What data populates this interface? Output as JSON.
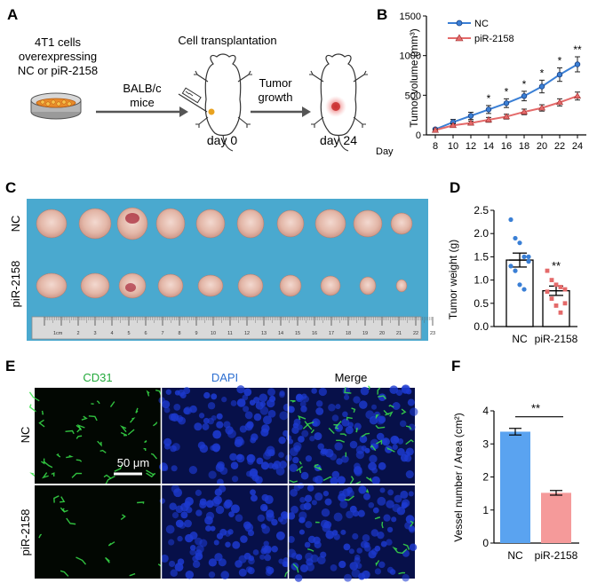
{
  "panels": {
    "a": {
      "letter": "A",
      "cells_line1": "4T1 cells",
      "cells_line2": "overexpressing",
      "cells_line3": "NC or piR-2158",
      "mice_line1": "BALB/c",
      "mice_line2": "mice",
      "transplant": "Cell transplantation",
      "growth_line1": "Tumor",
      "growth_line2": "growth",
      "day0": "day 0",
      "day24": "day 24"
    },
    "c": {
      "letter": "C",
      "row1": "NC",
      "row2": "piR-2158",
      "ruler_unit": "1cm",
      "ruler_ticks": [
        "2",
        "3",
        "4",
        "5",
        "6",
        "7",
        "8",
        "9",
        "10",
        "11",
        "12",
        "13",
        "14",
        "15",
        "16",
        "17",
        "18",
        "19",
        "20",
        "21",
        "22",
        "23"
      ]
    },
    "e": {
      "letter": "E",
      "col1": "CD31",
      "col2": "DAPI",
      "col3": "Merge",
      "row1": "NC",
      "row2": "piR-2158",
      "scale": "50 μm"
    }
  },
  "colors": {
    "nc": "#3a7fd5",
    "pir": "#e46a6a",
    "bar_nc": "#5aa3f0",
    "bar_pir": "#f59a9a",
    "board": "#4aa9cf"
  },
  "chart_data": [
    {
      "id": "B",
      "letter": "B",
      "type": "line",
      "title": "",
      "xlabel": "Day",
      "ylabel": "Tumor volume (mm³)",
      "x": [
        8,
        10,
        12,
        14,
        16,
        18,
        20,
        22,
        24
      ],
      "xlim": [
        7,
        25
      ],
      "ylim": [
        0,
        1500
      ],
      "yticks": [
        "0",
        "500",
        "1000",
        "1500"
      ],
      "ytick_values": [
        0,
        500,
        1000,
        1500
      ],
      "series": [
        {
          "name": "NC",
          "values": [
            70,
            160,
            240,
            320,
            400,
            490,
            610,
            760,
            890
          ],
          "errors": [
            15,
            35,
            45,
            50,
            55,
            60,
            80,
            85,
            95
          ]
        },
        {
          "name": "piR-2158",
          "values": [
            60,
            120,
            150,
            190,
            230,
            290,
            340,
            410,
            490
          ],
          "errors": [
            10,
            20,
            25,
            30,
            30,
            35,
            40,
            45,
            50
          ]
        }
      ],
      "significance": [
        "",
        "",
        "",
        "*",
        "*",
        "*",
        "*",
        "*",
        "**"
      ]
    },
    {
      "id": "D",
      "letter": "D",
      "type": "bar",
      "ylabel": "Tumor weight (g)",
      "categories": [
        "NC",
        "piR-2158"
      ],
      "values": [
        1.43,
        0.77
      ],
      "errors": [
        0.15,
        0.1
      ],
      "ylim": [
        0,
        2.5
      ],
      "yticks": [
        "0.0",
        "0.5",
        "1.0",
        "1.5",
        "2.0",
        "2.5"
      ],
      "ytick_values": [
        0,
        0.5,
        1.0,
        1.5,
        2.0,
        2.5
      ],
      "points": [
        [
          2.3,
          1.9,
          1.8,
          1.5,
          1.4,
          1.3,
          1.2,
          0.9,
          0.8,
          1.5
        ],
        [
          1.2,
          1.0,
          0.9,
          0.85,
          0.8,
          0.75,
          0.6,
          0.45,
          0.3,
          0.5
        ]
      ],
      "significance": "**"
    },
    {
      "id": "F",
      "letter": "F",
      "type": "bar",
      "ylabel": "Vessel number / Area (cm²)",
      "categories": [
        "NC",
        "piR-2158"
      ],
      "values": [
        3.37,
        1.52
      ],
      "errors": [
        0.1,
        0.07
      ],
      "ylim": [
        0,
        4
      ],
      "yticks": [
        "0",
        "1",
        "2",
        "3",
        "4"
      ],
      "ytick_values": [
        0,
        1,
        2,
        3,
        4
      ],
      "significance": "**"
    }
  ]
}
